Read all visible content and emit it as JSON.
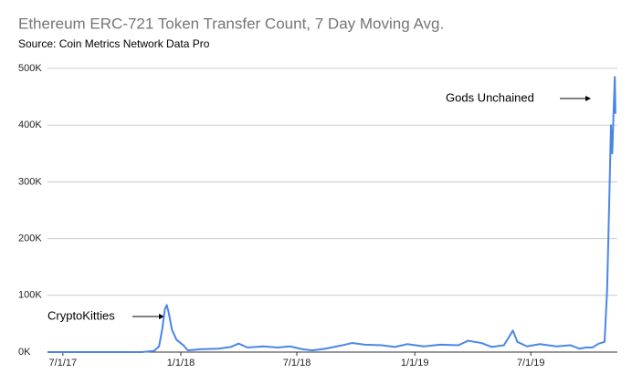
{
  "chart_data": {
    "type": "line",
    "title": "Ethereum ERC-721 Token Transfer Count, 7 Day Moving Avg.",
    "subtitle": "Source: Coin Metrics Network Data Pro",
    "annotations": [
      "CryptoKitties",
      "Gods Unchained"
    ],
    "color": "#4a86e8",
    "grid": true,
    "x": [
      "2017-06-07",
      "2017-09-01",
      "2017-11-01",
      "2017-11-20",
      "2017-11-28",
      "2017-12-03",
      "2017-12-07",
      "2017-12-10",
      "2017-12-13",
      "2017-12-18",
      "2017-12-25",
      "2018-01-05",
      "2018-01-12",
      "2018-02-01",
      "2018-03-01",
      "2018-03-20",
      "2018-04-01",
      "2018-04-15",
      "2018-05-10",
      "2018-06-01",
      "2018-06-20",
      "2018-07-10",
      "2018-07-25",
      "2018-08-15",
      "2018-09-10",
      "2018-09-25",
      "2018-10-15",
      "2018-11-10",
      "2018-12-01",
      "2018-12-20",
      "2019-01-15",
      "2019-02-10",
      "2019-03-10",
      "2019-03-25",
      "2019-04-15",
      "2019-05-01",
      "2019-05-20",
      "2019-06-03",
      "2019-06-10",
      "2019-06-25",
      "2019-07-15",
      "2019-08-10",
      "2019-09-01",
      "2019-09-15",
      "2019-09-25",
      "2019-10-05",
      "2019-10-15",
      "2019-10-24",
      "2019-10-28",
      "2019-10-31",
      "2019-11-03",
      "2019-11-05",
      "2019-11-07",
      "2019-11-09",
      "2019-11-10"
    ],
    "values": [
      0,
      0,
      0,
      2000,
      10000,
      40000,
      75000,
      83000,
      70000,
      40000,
      22000,
      12000,
      3000,
      5000,
      6000,
      9000,
      15000,
      8000,
      10000,
      8000,
      10000,
      5000,
      3000,
      6000,
      12000,
      16000,
      13000,
      12000,
      9000,
      14000,
      10000,
      13000,
      12000,
      20000,
      16000,
      9000,
      12000,
      38000,
      18000,
      10000,
      14000,
      10000,
      12000,
      6000,
      8000,
      8000,
      15000,
      18000,
      110000,
      250000,
      400000,
      350000,
      420000,
      485000,
      420000
    ],
    "xlim": [
      "2017-06-07",
      "2019-11-13"
    ],
    "xticks": [
      {
        "value": "2017-07-01",
        "label": "7/1/17"
      },
      {
        "value": "2018-01-01",
        "label": "1/1/18"
      },
      {
        "value": "2018-07-01",
        "label": "7/1/18"
      },
      {
        "value": "2019-01-01",
        "label": "1/1/19"
      },
      {
        "value": "2019-07-01",
        "label": "7/1/19"
      }
    ],
    "ylim": [
      0,
      500000
    ],
    "yticks": [
      {
        "value": 0,
        "label": "0K"
      },
      {
        "value": 100000,
        "label": "100K"
      },
      {
        "value": 200000,
        "label": "200K"
      },
      {
        "value": 300000,
        "label": "300K"
      },
      {
        "value": 400000,
        "label": "400K"
      },
      {
        "value": 500000,
        "label": "500K"
      }
    ]
  }
}
